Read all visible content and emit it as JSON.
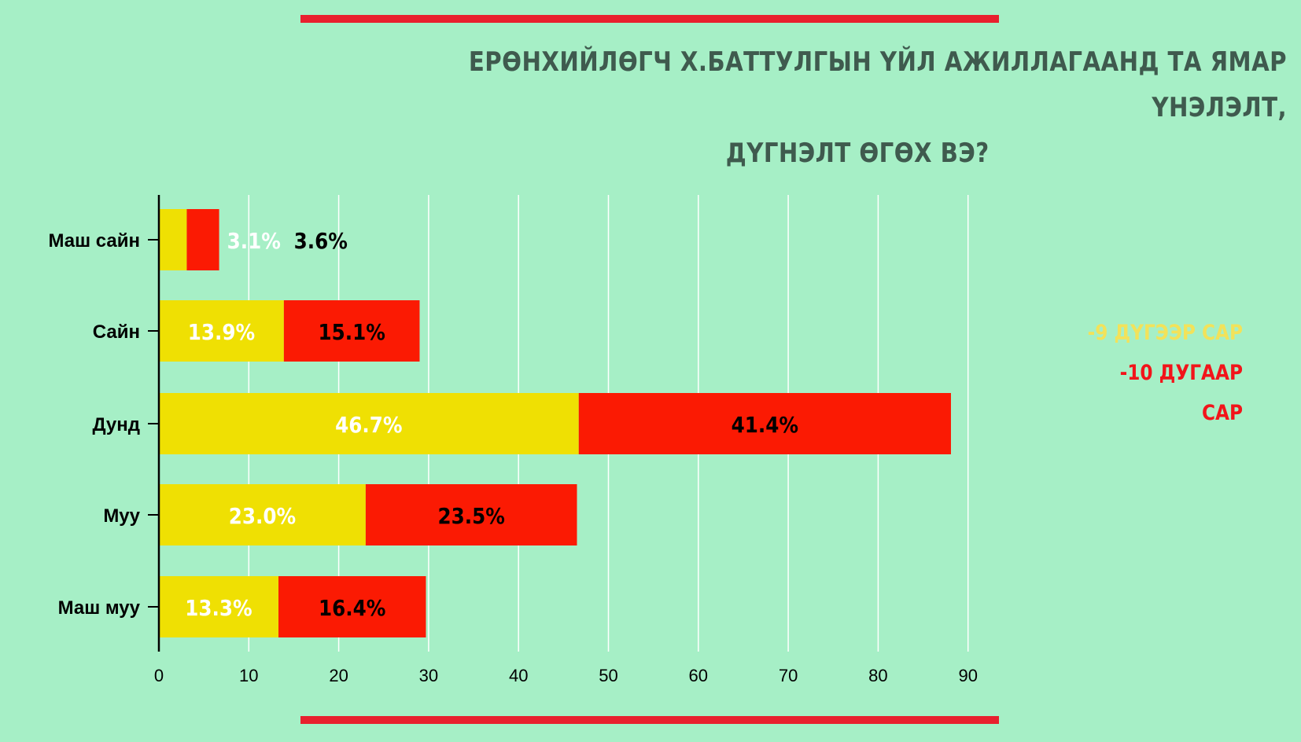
{
  "page": {
    "title_line1": "ЕРӨНХИЙЛӨГЧ Х.БАТТУЛГЫН ҮЙЛ АЖИЛЛАГААНД ТА ЯМАР ҮНЭЛЭЛТ,",
    "title_line2": "ДҮГНЭЛТ ӨГӨХ ВЭ?"
  },
  "colors": {
    "background": "#a6efc6",
    "rule": "#e8202e",
    "series1": "#efe003",
    "series2": "#fb1a03",
    "grid": "#ffffff",
    "axis": "#000000"
  },
  "chart_data": {
    "type": "bar",
    "orientation": "horizontal",
    "stacked": true,
    "title": "ЕРӨНХИЙЛӨГЧ Х.БАТТУЛГЫН ҮЙЛ АЖИЛЛАГААНД ТА ЯМАР ҮНЭЛЭЛТ, ДҮГНЭЛТ ӨГӨХ ВЭ?",
    "categories": [
      "Маш сайн",
      "Сайн",
      "Дунд",
      "Муу",
      "Маш муу"
    ],
    "series": [
      {
        "name": "-9 ДҮГЭЭР САР",
        "values": [
          3.1,
          13.9,
          46.7,
          23.0,
          13.3
        ],
        "labels": [
          "3.1%",
          "13.9%",
          "46.7%",
          "23.0%",
          "13.3%"
        ]
      },
      {
        "name": "-10 ДУГААР САР",
        "values": [
          3.6,
          15.1,
          41.4,
          23.5,
          16.4
        ],
        "labels": [
          "3.6%",
          "15.1%",
          "41.4%",
          "23.5%",
          "16.4%"
        ]
      }
    ],
    "xlim": [
      0,
      90
    ],
    "xticks": [
      "0",
      "10",
      "20",
      "30",
      "40",
      "50",
      "60",
      "70",
      "80",
      "90"
    ],
    "grid": true,
    "legend_position": "right"
  }
}
